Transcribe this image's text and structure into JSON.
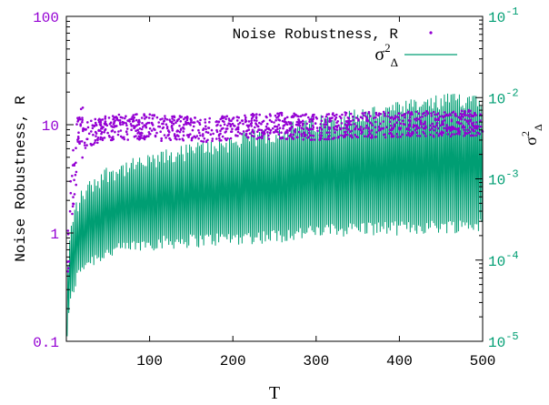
{
  "chart_data": {
    "type": "scatter",
    "x_range": [
      0,
      500
    ],
    "x_ticks": [
      100,
      200,
      300,
      400,
      500
    ],
    "x_tick_labels": [
      "100",
      "200",
      "300",
      "400",
      "500"
    ],
    "xlabel": "T",
    "y_left": {
      "label": "Noise Robustness, R",
      "scale": "log",
      "range": [
        0.1,
        100
      ],
      "ticks": [
        0.1,
        1,
        10,
        100
      ],
      "tick_labels": [
        "0.1",
        "1",
        "10",
        "100"
      ],
      "color": "#9400d3"
    },
    "y_right": {
      "label_base": "σ",
      "label_sup": "2",
      "label_sub": "Δ",
      "scale": "log",
      "range": [
        1e-05,
        0.1
      ],
      "ticks": [
        1e-05,
        0.0001,
        0.001,
        0.01,
        0.1
      ],
      "tick_base": "10",
      "tick_exponents": [
        "-5",
        "-4",
        "-3",
        "-2",
        "-1"
      ],
      "color": "#009e73"
    },
    "grid": false,
    "legend_position": "top-right",
    "series": [
      {
        "name": "Noise Robustness, R",
        "type": "scatter",
        "axis": "left",
        "color": "#9400d3",
        "sample": [
          {
            "x": 1,
            "y": 0.55
          },
          {
            "x": 3,
            "y": 1.1
          },
          {
            "x": 5,
            "y": 2.0
          },
          {
            "x": 8,
            "y": 3.5
          },
          {
            "x": 10,
            "y": 4.5
          },
          {
            "x": 15,
            "y": 6.5
          },
          {
            "x": 20,
            "y": 7.5
          },
          {
            "x": 30,
            "y": 8.5
          },
          {
            "x": 50,
            "y": 9.5
          },
          {
            "x": 100,
            "y": 9.5
          },
          {
            "x": 150,
            "y": 9.0
          },
          {
            "x": 200,
            "y": 9.3
          },
          {
            "x": 250,
            "y": 9.8
          },
          {
            "x": 300,
            "y": 9.5
          },
          {
            "x": 350,
            "y": 10.0
          },
          {
            "x": 400,
            "y": 10.0
          },
          {
            "x": 450,
            "y": 10.2
          },
          {
            "x": 500,
            "y": 10.5
          }
        ]
      },
      {
        "name": "σ²Δ",
        "legend_base": "σ",
        "legend_sup": "2",
        "legend_sub": "Δ",
        "type": "line",
        "axis": "right",
        "color": "#009e73",
        "envelope": [
          {
            "x": 1,
            "low": 1e-05,
            "high": 5e-05
          },
          {
            "x": 10,
            "low": 4e-05,
            "high": 0.0005
          },
          {
            "x": 20,
            "low": 7e-05,
            "high": 0.0008
          },
          {
            "x": 50,
            "low": 0.0001,
            "high": 0.0015
          },
          {
            "x": 100,
            "low": 0.00013,
            "high": 0.002
          },
          {
            "x": 150,
            "low": 0.00014,
            "high": 0.0028
          },
          {
            "x": 200,
            "low": 0.00015,
            "high": 0.0035
          },
          {
            "x": 250,
            "low": 0.00016,
            "high": 0.0045
          },
          {
            "x": 300,
            "low": 0.00018,
            "high": 0.006
          },
          {
            "x": 350,
            "low": 0.0002,
            "high": 0.0075
          },
          {
            "x": 400,
            "low": 0.0002,
            "high": 0.009
          },
          {
            "x": 450,
            "low": 0.00021,
            "high": 0.011
          },
          {
            "x": 500,
            "low": 0.00022,
            "high": 0.013
          }
        ]
      }
    ]
  }
}
